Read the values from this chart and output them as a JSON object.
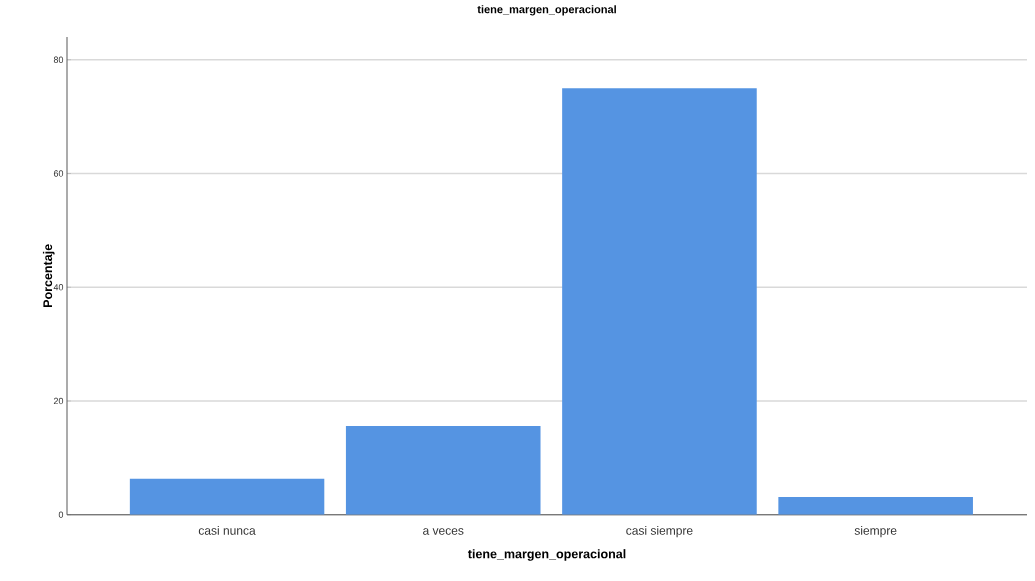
{
  "chart_data": {
    "type": "bar",
    "title": "tiene_margen_operacional",
    "xlabel": "tiene_margen_operacional",
    "ylabel": "Porcentaje",
    "categories": [
      "casi nunca",
      "a veces",
      "casi siempre",
      "siempre"
    ],
    "values": [
      6.3,
      15.6,
      75,
      3.1
    ],
    "color": "#5594e2",
    "ylim": [
      0,
      84
    ],
    "yticks": [
      0,
      20,
      40,
      60,
      80
    ],
    "grid": "y"
  }
}
